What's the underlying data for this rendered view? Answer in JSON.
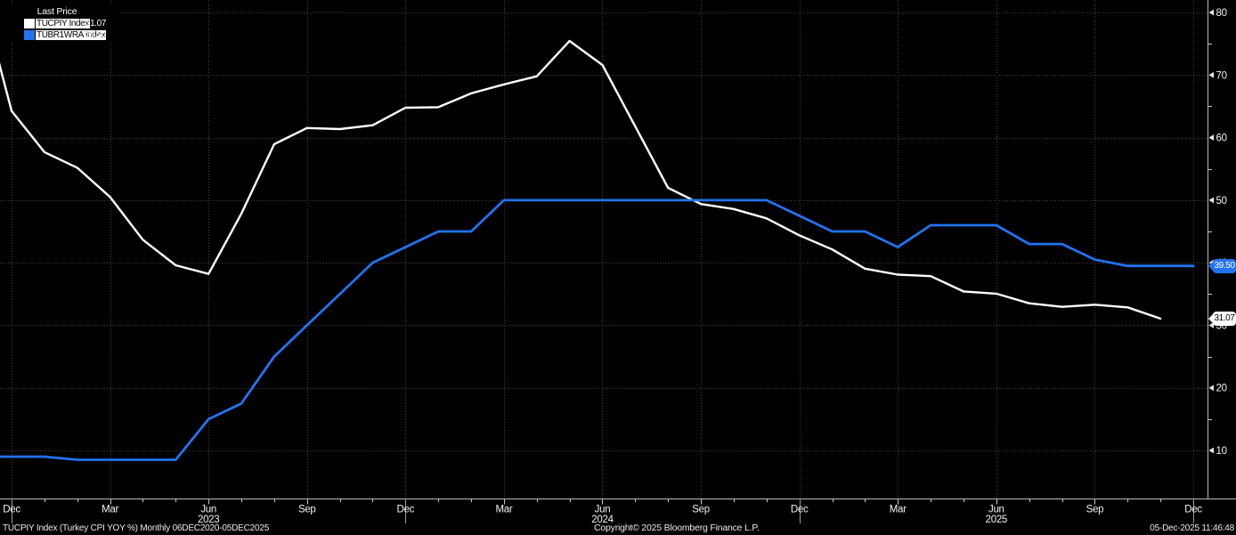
{
  "colors": {
    "background": "#000000",
    "white_series": "#ffffff",
    "blue_series": "#2273f0",
    "grid": "#414141",
    "axis": "#b9b9b9",
    "label_text": "#f2f2f2"
  },
  "legend": {
    "title": "Last Price",
    "rows": [
      {
        "label": "TUCPIY Index",
        "value": "31.07",
        "swatch": "#ffffff"
      },
      {
        "label": "TUBR1WRA Index",
        "value": "39.50",
        "swatch": "#2273f0"
      }
    ]
  },
  "price_tags": [
    {
      "text": "39.50",
      "value": 39.5,
      "bg": "#2273f0",
      "fg": "#ffffff"
    },
    {
      "text": "31.07",
      "value": 31.07,
      "bg": "#ffffff",
      "fg": "#000000"
    }
  ],
  "footer": {
    "left": "TUCPIY Index (Turkey CPI YOY %) Monthly 06DEC2020-05DEC2025",
    "center": "Copyright© 2025 Bloomberg Finance L.P.",
    "right": "05-Dec-2025 11:46:48"
  },
  "chart_data": {
    "type": "line",
    "title": "Last Price",
    "period": "Monthly",
    "date_range": "06DEC2020-05DEC2025",
    "grid_style": "dotted",
    "legend_position": "top-left",
    "x_axis": {
      "unit": "month",
      "start_month": "Nov 2022",
      "end_month": "Dec 2025",
      "ticks": [
        {
          "t": 0,
          "label": "Dec"
        },
        {
          "t": 3,
          "label": "Mar"
        },
        {
          "t": 6,
          "label": "Jun"
        },
        {
          "t": 9,
          "label": "Sep"
        },
        {
          "t": 12,
          "label": "Dec"
        },
        {
          "t": 15,
          "label": "Mar"
        },
        {
          "t": 18,
          "label": "Jun"
        },
        {
          "t": 21,
          "label": "Sep"
        },
        {
          "t": 24,
          "label": "Dec"
        },
        {
          "t": 27,
          "label": "Mar"
        },
        {
          "t": 30,
          "label": "Jun"
        },
        {
          "t": 33,
          "label": "Sep"
        },
        {
          "t": 36,
          "label": "Dec"
        }
      ],
      "year_labels": [
        {
          "t": 6,
          "label": "2023"
        },
        {
          "t": 18,
          "label": "2024"
        },
        {
          "t": 30,
          "label": "2025"
        }
      ]
    },
    "y_axis": {
      "ticks": [
        10,
        20,
        30,
        40,
        50,
        60,
        70,
        80
      ],
      "minor_tick_step": 5,
      "min": 3,
      "max": 81
    },
    "series": [
      {
        "name": "TUCPIY Index",
        "description": "Turkey CPI YOY %",
        "color": "#ffffff",
        "last_price": 31.07,
        "start_t": -1,
        "start_month": "Nov 2022",
        "values": [
          84.39,
          64.27,
          57.68,
          55.18,
          50.51,
          43.68,
          39.59,
          38.21,
          47.83,
          58.94,
          61.53,
          61.36,
          61.98,
          64.77,
          64.86,
          67.07,
          68.5,
          69.8,
          75.45,
          71.6,
          61.78,
          51.97,
          49.38,
          48.58,
          47.09,
          44.38,
          42.12,
          39.05,
          38.1,
          37.86,
          35.41,
          35.05,
          33.52,
          32.95,
          33.29,
          32.87,
          31.07
        ]
      },
      {
        "name": "TUBR1WRA Index",
        "description": "",
        "color": "#2273f0",
        "last_price": 39.5,
        "start_t": -1,
        "start_month": "Nov 2022",
        "values": [
          9.0,
          9.0,
          9.0,
          8.5,
          8.5,
          8.5,
          8.5,
          15.0,
          17.5,
          25.0,
          30.0,
          35.0,
          40.0,
          42.5,
          45.0,
          45.0,
          50.0,
          50.0,
          50.0,
          50.0,
          50.0,
          50.0,
          50.0,
          50.0,
          50.0,
          47.5,
          45.0,
          45.0,
          42.5,
          46.0,
          46.0,
          46.0,
          43.0,
          43.0,
          40.5,
          39.5,
          39.5,
          39.5
        ]
      }
    ]
  }
}
